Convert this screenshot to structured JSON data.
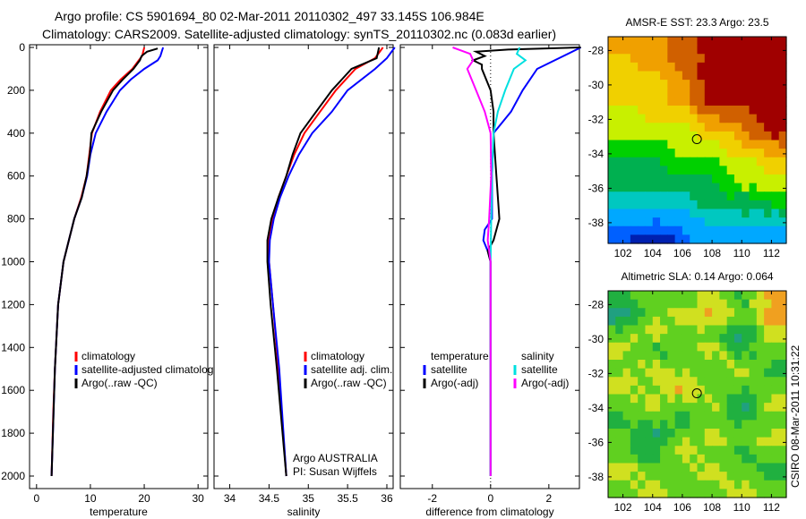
{
  "title": {
    "line1": "Argo profile: CS 5901694_80 02-Mar-2011 20110302_497 33.145S 106.984E",
    "line2": "Climatology: CARS2009. Satellite-adjusted climatology: synTS_20110302.nc (0.083d earlier)"
  },
  "footer": "CSIRO 08-Mar-2011 10:31:22",
  "chart_data": [
    {
      "type": "line",
      "xlabel": "temperature",
      "ylim": [
        2000,
        0
      ],
      "xlim": [
        -1.3,
        31.8
      ],
      "yticks": [
        "0",
        "200",
        "400",
        "600",
        "800",
        "1000",
        "1200",
        "1400",
        "1600",
        "1800",
        "2000"
      ],
      "xticks": [
        "0",
        "10",
        "20",
        "30"
      ],
      "legend": [
        "climatology",
        "satellite-adjusted climatology",
        "Argo(..raw -QC)"
      ],
      "series": [
        {
          "name": "climatology",
          "color": "#ff0000",
          "depth": [
            0,
            40,
            60,
            100,
            150,
            200,
            300,
            400,
            500,
            600,
            700,
            800,
            900,
            1000,
            1200,
            1500,
            1700,
            2000
          ],
          "values": [
            20,
            19.6,
            19,
            17.8,
            15.6,
            13.8,
            11.8,
            10.3,
            9.8,
            9.3,
            8.3,
            7,
            6,
            5,
            4,
            3.4,
            3.1,
            2.8
          ]
        },
        {
          "name": "satellite-adjusted climatology",
          "color": "#0000ff",
          "depth": [
            0,
            40,
            60,
            100,
            150,
            200,
            300,
            400,
            500,
            600,
            700,
            800,
            900,
            1000,
            1200,
            1500,
            2000
          ],
          "values": [
            23.5,
            23,
            22.5,
            20,
            17.5,
            15.5,
            13,
            11,
            10,
            9.4,
            8.4,
            7,
            6,
            5,
            4,
            3.4,
            2.8
          ]
        },
        {
          "name": "Argo(..raw -QC)",
          "color": "#000000",
          "depth": [
            5,
            20,
            40,
            60,
            100,
            150,
            200,
            300,
            400,
            500,
            600,
            700,
            800,
            900,
            1000,
            1200,
            1500,
            2000
          ],
          "values": [
            22.5,
            20.5,
            19.5,
            19.2,
            18,
            16,
            14.2,
            12,
            10.2,
            9.9,
            9.3,
            8.4,
            7,
            6,
            5,
            4,
            3.4,
            2.8
          ]
        }
      ]
    },
    {
      "type": "line",
      "xlabel": "salinity",
      "ylim": [
        2000,
        0
      ],
      "xlim": [
        33.8,
        36.08
      ],
      "xticks": [
        "34",
        "34.5",
        "35",
        "35.5",
        "36"
      ],
      "legend": [
        "climatology",
        "satellite adj. clim.",
        "Argo(..raw -QC)"
      ],
      "annotation": [
        "Argo AUSTRALIA",
        "PI: Susan Wijffels"
      ],
      "series": [
        {
          "name": "climatology",
          "color": "#ff0000",
          "depth": [
            0,
            50,
            100,
            200,
            300,
            400,
            500,
            600,
            700,
            800,
            900,
            1000,
            1200,
            1500,
            2000
          ],
          "values": [
            35.95,
            35.85,
            35.6,
            35.35,
            35.15,
            34.95,
            34.82,
            34.72,
            34.62,
            34.55,
            34.5,
            34.5,
            34.55,
            34.62,
            34.72
          ]
        },
        {
          "name": "satellite adj. clim.",
          "color": "#0000ff",
          "depth": [
            0,
            50,
            100,
            200,
            300,
            400,
            500,
            600,
            700,
            800,
            900,
            1000,
            1200,
            1500,
            2000
          ],
          "values": [
            36.1,
            36.0,
            35.85,
            35.5,
            35.3,
            35.05,
            34.88,
            34.75,
            34.64,
            34.56,
            34.51,
            34.5,
            34.55,
            34.63,
            34.72
          ]
        },
        {
          "name": "Argo(..raw -QC)",
          "color": "#000000",
          "depth": [
            0,
            50,
            100,
            200,
            300,
            400,
            500,
            600,
            700,
            800,
            900,
            1000,
            1200,
            1500,
            2000
          ],
          "values": [
            35.9,
            35.87,
            35.55,
            35.3,
            35.1,
            34.9,
            34.8,
            34.72,
            34.62,
            34.53,
            34.48,
            34.48,
            34.52,
            34.6,
            34.72
          ]
        }
      ]
    },
    {
      "type": "line",
      "xlabel": "difference from climatology",
      "ylim": [
        2000,
        0
      ],
      "xlim": [
        -3.1,
        3.05
      ],
      "xticks": [
        "-2",
        "0",
        "2"
      ],
      "legend": {
        "temperature": "temperature",
        "salinity": "salinity",
        "items": [
          "satellite",
          "Argo(-adj)",
          "satellite",
          "Argo(-adj)"
        ]
      },
      "series": [
        {
          "name": "temperature satellite",
          "color": "#0000ff",
          "depth": [
            0,
            60,
            100,
            200,
            300,
            400,
            600,
            800,
            850,
            900,
            950,
            1000,
            1200,
            1500,
            2000
          ],
          "values": [
            3.1,
            2.2,
            1.6,
            1.1,
            0.7,
            0.1,
            0.05,
            0.05,
            -0.2,
            -0.25,
            -0.1,
            0,
            0,
            0,
            0
          ]
        },
        {
          "name": "temperature Argo(-adj)",
          "color": "#000000",
          "depth": [
            0,
            10,
            20,
            40,
            60,
            80,
            100,
            200,
            300,
            400,
            600,
            800,
            900,
            950,
            1000,
            1200,
            1500,
            2000
          ],
          "values": [
            3.1,
            0.6,
            -0.5,
            -0.2,
            -0.6,
            -0.3,
            -0.3,
            0,
            0.1,
            0.1,
            0.2,
            0.3,
            0.1,
            -0.1,
            0,
            0,
            0,
            0
          ]
        },
        {
          "name": "salinity satellite",
          "color": "#00e0e0",
          "depth": [
            0,
            30,
            60,
            100,
            200,
            300,
            400,
            600,
            800,
            1000,
            1500,
            2000
          ],
          "values": [
            1.0,
            0.9,
            1.2,
            0.8,
            0.5,
            0.25,
            0.1,
            0.05,
            0.02,
            0,
            0,
            0
          ]
        },
        {
          "name": "salinity Argo(-adj)",
          "color": "#ff00ff",
          "depth": [
            0,
            30,
            60,
            100,
            200,
            300,
            400,
            600,
            800,
            900,
            1000,
            1500,
            2000
          ],
          "values": [
            -1.3,
            -0.7,
            -0.6,
            -0.8,
            -0.5,
            -0.2,
            0,
            0.02,
            -0.05,
            -0.1,
            0,
            0,
            0
          ]
        }
      ]
    },
    {
      "type": "heatmap",
      "title": "AMSR-E SST: 23.3 Argo: 23.5",
      "xlim": [
        101,
        113
      ],
      "ylim": [
        -39.2,
        -27.2
      ],
      "xticks": [
        "102",
        "104",
        "106",
        "108",
        "110",
        "112"
      ],
      "yticks": [
        "-28",
        "-30",
        "-32",
        "-34",
        "-36",
        "-38"
      ],
      "argo": [
        106.98,
        -33.15
      ],
      "color_index_rows": [
        [
          8,
          8,
          9,
          10,
          10,
          10
        ],
        [
          7,
          8,
          9,
          10,
          10,
          10
        ],
        [
          7,
          7,
          8,
          10,
          10,
          10
        ],
        [
          7,
          7,
          8,
          10,
          10,
          10
        ],
        [
          6,
          7,
          7,
          9,
          9,
          10
        ],
        [
          6,
          6,
          6,
          7,
          8,
          10
        ],
        [
          5,
          5,
          6,
          6,
          7,
          8
        ],
        [
          4,
          4,
          5,
          5,
          6,
          7
        ],
        [
          4,
          4,
          4,
          4,
          6,
          6
        ],
        [
          3,
          3,
          3,
          4,
          4,
          5
        ],
        [
          2,
          2,
          2,
          3,
          3,
          3
        ],
        [
          1,
          0,
          1,
          2,
          2,
          2
        ]
      ],
      "colormap": [
        "#0020b0",
        "#0060ff",
        "#00a8ff",
        "#00c8c0",
        "#00b050",
        "#00d000",
        "#c8f000",
        "#f0d000",
        "#f0a000",
        "#d06000",
        "#a00000"
      ]
    },
    {
      "type": "heatmap",
      "title": "Altimetric SLA: 0.14 Argo: 0.064",
      "xlim": [
        101,
        113
      ],
      "ylim": [
        -39.2,
        -27.2
      ],
      "xticks": [
        "102",
        "104",
        "106",
        "108",
        "110",
        "112"
      ],
      "yticks": [
        "-28",
        "-30",
        "-32",
        "-34",
        "-36",
        "-38"
      ],
      "argo": [
        106.98,
        -33.15
      ],
      "color_index_rows": [
        [
          4,
          5,
          5,
          6,
          4,
          7
        ],
        [
          3,
          5,
          6,
          7,
          5,
          7
        ],
        [
          5,
          6,
          5,
          5,
          3,
          6
        ],
        [
          6,
          4,
          5,
          6,
          4,
          5
        ],
        [
          5,
          6,
          5,
          5,
          6,
          4
        ],
        [
          6,
          5,
          7,
          5,
          5,
          5
        ],
        [
          5,
          6,
          5,
          6,
          3,
          6
        ],
        [
          4,
          5,
          4,
          5,
          4,
          5
        ],
        [
          5,
          3,
          5,
          6,
          5,
          6
        ],
        [
          5,
          4,
          6,
          5,
          4,
          5
        ],
        [
          6,
          5,
          5,
          6,
          5,
          4
        ],
        [
          5,
          6,
          5,
          5,
          6,
          5
        ]
      ],
      "colormap": [
        "#0040c0",
        "#0080ff",
        "#00b0e0",
        "#20a080",
        "#20b040",
        "#60d020",
        "#d0e020",
        "#f0a020"
      ]
    }
  ]
}
